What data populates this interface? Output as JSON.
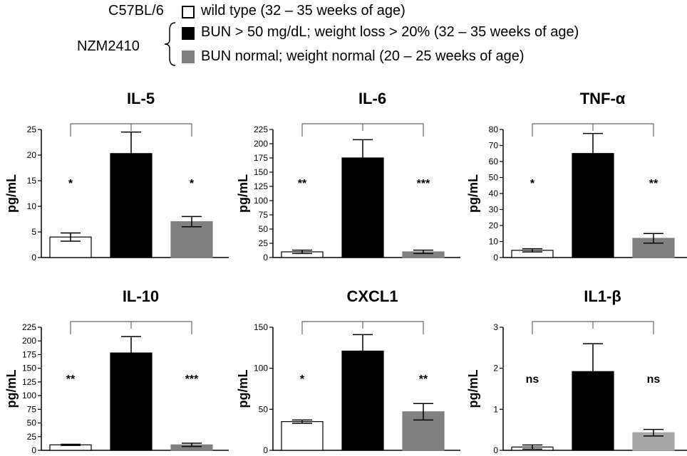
{
  "legend": {
    "strain_wt": "C57BL/6",
    "strain_nzm": "NZM2410",
    "items": [
      {
        "label": "wild type (32 – 35 weeks of age)",
        "color": "#ffffff"
      },
      {
        "label": "BUN > 50 mg/dL; weight loss > 20% (32 – 35 weeks of age)",
        "color": "#000000"
      },
      {
        "label": "BUN normal; weight normal (20 – 25 weeks of age)",
        "color": "#808080"
      }
    ]
  },
  "chart_data": [
    {
      "type": "bar",
      "title": "IL-5",
      "ylabel": "pg/mL",
      "ylim": [
        0,
        25
      ],
      "yticks": [
        0,
        5,
        10,
        15,
        20,
        25
      ],
      "categories": [
        "wild type",
        "BUN > 50 mg/dL",
        "BUN normal"
      ],
      "values": [
        4,
        20.3,
        7
      ],
      "errors": [
        0.8,
        4.2,
        1
      ],
      "colors": [
        "#ffffff",
        "#000000",
        "#808080"
      ],
      "significance": [
        "*",
        "*"
      ]
    },
    {
      "type": "bar",
      "title": "IL-6",
      "ylabel": "pg/mL",
      "ylim": [
        0,
        225
      ],
      "yticks": [
        0,
        25,
        50,
        75,
        100,
        125,
        150,
        175,
        200,
        225
      ],
      "categories": [
        "wild type",
        "BUN > 50 mg/dL",
        "BUN normal"
      ],
      "values": [
        10,
        175,
        10
      ],
      "errors": [
        3,
        32,
        3
      ],
      "colors": [
        "#ffffff",
        "#000000",
        "#808080"
      ],
      "significance": [
        "**",
        "***"
      ]
    },
    {
      "type": "bar",
      "title": "TNF-α",
      "ylabel": "pg/mL",
      "ylim": [
        0,
        80
      ],
      "yticks": [
        0,
        10,
        20,
        30,
        40,
        50,
        60,
        70,
        80
      ],
      "categories": [
        "wild type",
        "BUN > 50 mg/dL",
        "BUN normal"
      ],
      "values": [
        4.5,
        65,
        12
      ],
      "errors": [
        1,
        12.5,
        3
      ],
      "colors": [
        "#ffffff",
        "#000000",
        "#808080"
      ],
      "significance": [
        "*",
        "**"
      ]
    },
    {
      "type": "bar",
      "title": "IL-10",
      "ylabel": "pg/mL",
      "ylim": [
        0,
        225
      ],
      "yticks": [
        0,
        25,
        50,
        75,
        100,
        125,
        150,
        175,
        200,
        225
      ],
      "categories": [
        "wild type",
        "BUN > 50 mg/dL",
        "BUN normal"
      ],
      "values": [
        10,
        178,
        10
      ],
      "errors": [
        1,
        30,
        3
      ],
      "colors": [
        "#ffffff",
        "#000000",
        "#808080"
      ],
      "significance": [
        "**",
        "***"
      ]
    },
    {
      "type": "bar",
      "title": "CXCL1",
      "ylabel": "pg/mL",
      "ylim": [
        0,
        150
      ],
      "yticks": [
        0,
        50,
        100,
        150
      ],
      "categories": [
        "wild type",
        "BUN > 50 mg/dL",
        "BUN normal"
      ],
      "values": [
        35,
        121,
        47
      ],
      "errors": [
        2,
        20,
        10
      ],
      "colors": [
        "#ffffff",
        "#000000",
        "#808080"
      ],
      "significance": [
        "*",
        "**"
      ]
    },
    {
      "type": "bar",
      "title": "IL1-β",
      "ylabel": "pg/mL",
      "ylim": [
        0,
        3
      ],
      "yticks": [
        0,
        1,
        2,
        3
      ],
      "categories": [
        "wild type",
        "BUN > 50 mg/dL",
        "BUN normal"
      ],
      "values": [
        0.08,
        1.92,
        0.43
      ],
      "errors": [
        0.05,
        0.68,
        0.08
      ],
      "colors": [
        "#ffffff",
        "#000000",
        "#a6a6a6"
      ],
      "significance": [
        "ns",
        "ns"
      ]
    }
  ]
}
